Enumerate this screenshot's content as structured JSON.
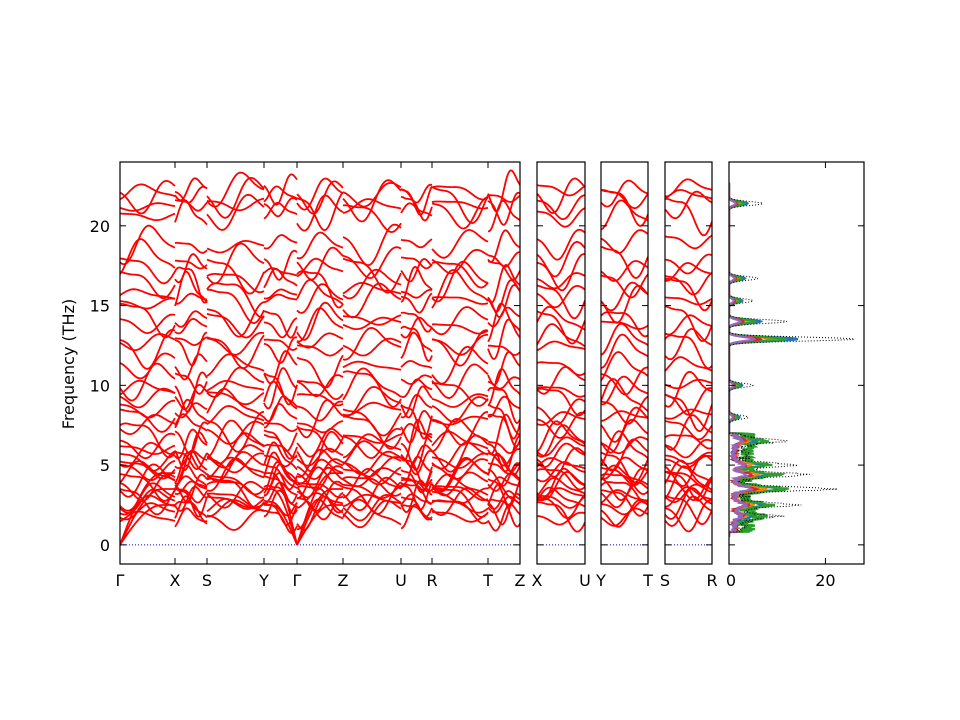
{
  "chart_data": {
    "type": "line",
    "ylabel": "Frequency (THz)",
    "ylim": [
      -1.2,
      24
    ],
    "yticks": [
      0,
      5,
      10,
      15,
      20
    ],
    "band_color": "#ff0000",
    "zero_line_color": "#0000cc",
    "panels": [
      {
        "xticks": [
          "Γ",
          "X",
          "S",
          "Y",
          "Γ",
          "Z",
          "U",
          "R",
          "T",
          "Z"
        ]
      },
      {
        "xticks": [
          "X",
          "U"
        ]
      },
      {
        "xticks": [
          "Y",
          "T"
        ]
      },
      {
        "xticks": [
          "S",
          "R"
        ]
      }
    ],
    "dos": {
      "xticks": [
        "0",
        "20"
      ],
      "xlim": [
        0,
        28
      ],
      "total_color": "#000000",
      "series_colors": [
        "#1f77b4",
        "#ff7f0e",
        "#2ca02c",
        "#d62728",
        "#9467bd"
      ],
      "total_peaks": [
        {
          "freq": 21.4,
          "val": 7
        },
        {
          "freq": 16.7,
          "val": 6
        },
        {
          "freq": 15.3,
          "val": 5
        },
        {
          "freq": 14.0,
          "val": 12
        },
        {
          "freq": 12.9,
          "val": 26
        },
        {
          "freq": 10.0,
          "val": 5
        },
        {
          "freq": 8.0,
          "val": 4
        },
        {
          "freq": 6.5,
          "val": 8
        },
        {
          "freq": 5.0,
          "val": 10
        },
        {
          "freq": 4.4,
          "val": 13
        },
        {
          "freq": 3.5,
          "val": 18
        },
        {
          "freq": 2.5,
          "val": 11
        },
        {
          "freq": 1.8,
          "val": 7
        }
      ]
    }
  }
}
